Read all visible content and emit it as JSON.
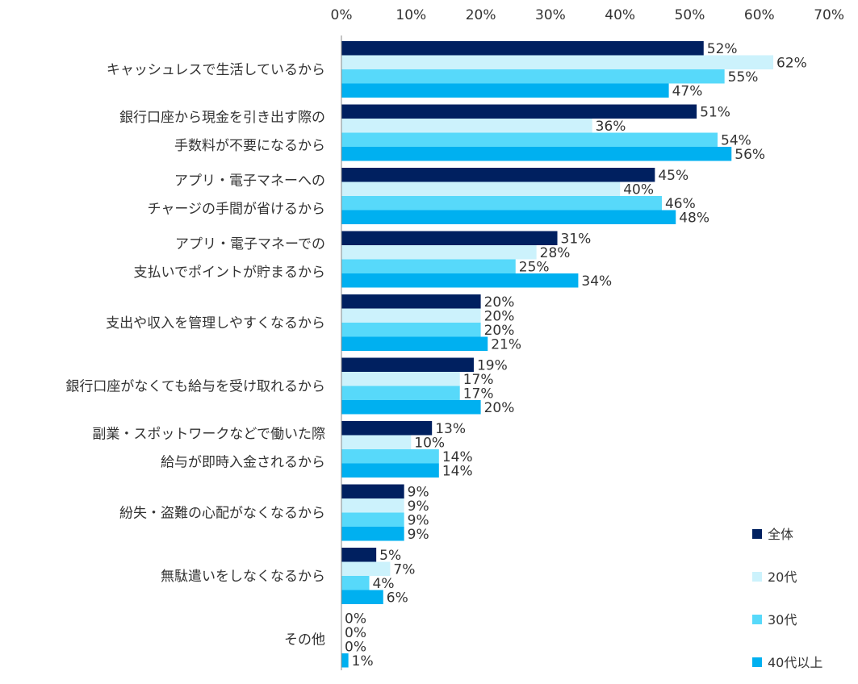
{
  "chart_data": {
    "type": "bar",
    "orientation": "horizontal",
    "xlim": [
      0,
      70
    ],
    "x_ticks": [
      "0%",
      "10%",
      "20%",
      "30%",
      "40%",
      "50%",
      "60%",
      "70%"
    ],
    "grid": false,
    "legend_position": "bottom-right",
    "categories": [
      [
        "キャッシュレスで生活しているから"
      ],
      [
        "銀行口座から現金を引き出す際の",
        "手数料が不要になるから"
      ],
      [
        "アプリ・電子マネーへの",
        "チャージの手間が省けるから"
      ],
      [
        "アプリ・電子マネーでの",
        "支払いでポイントが貯まるから"
      ],
      [
        "支出や収入を管理しやすくなるから"
      ],
      [
        "銀行口座がなくても給与を受け取れるから"
      ],
      [
        "副業・スポットワークなどで働いた際",
        "給与が即時入金されるから"
      ],
      [
        "紛失・盗難の心配がなくなるから"
      ],
      [
        "無駄遣いをしなくなるから"
      ],
      [
        "その他"
      ]
    ],
    "series": [
      {
        "name": "全体",
        "color": "#002060",
        "values": [
          52,
          51,
          45,
          31,
          20,
          19,
          13,
          9,
          5,
          0
        ]
      },
      {
        "name": "20代",
        "color": "#CCF2FC",
        "values": [
          62,
          36,
          40,
          28,
          20,
          17,
          10,
          9,
          7,
          0
        ]
      },
      {
        "name": "30代",
        "color": "#57D9FA",
        "values": [
          55,
          54,
          46,
          25,
          20,
          17,
          14,
          9,
          4,
          0
        ]
      },
      {
        "name": "40代以上",
        "color": "#00B0F0",
        "values": [
          47,
          56,
          48,
          34,
          21,
          20,
          14,
          9,
          6,
          1
        ]
      }
    ],
    "value_suffix": "%"
  }
}
